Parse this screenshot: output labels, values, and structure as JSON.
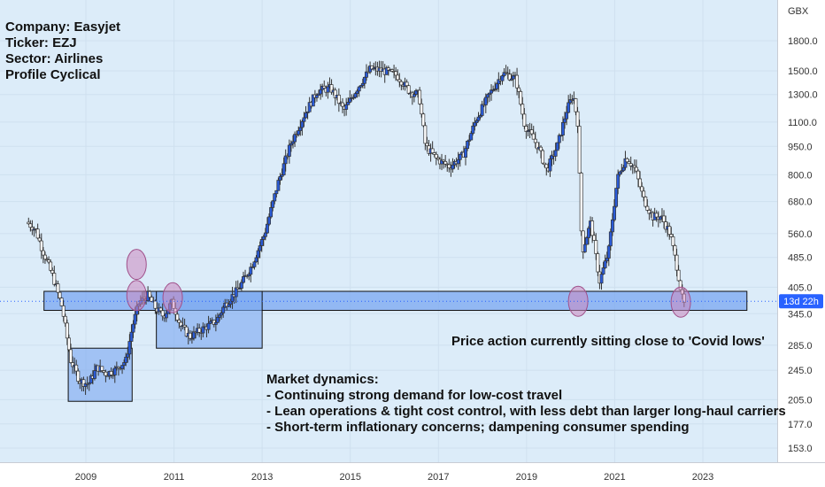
{
  "annotations": {
    "company": "Company: Easyjet",
    "ticker": "Ticker: EZJ",
    "sector": "Sector: Airlines",
    "profile": "Profile Cyclical",
    "covid_note": "Price action currently sitting close to 'Covid lows'",
    "dynamics_title": "Market dynamics:",
    "dynamics_points": [
      "- Continuing strong demand for low-cost travel",
      "- Lean operations & tight cost control, with less debt than larger long-haul carriers",
      "- Short-term inflationary concerns; dampening consumer spending"
    ]
  },
  "colors": {
    "background": "#dcecf9",
    "candle_up": "#2a5bd7",
    "candle_down": "#ffffff",
    "wick": "#333333",
    "zone_fill": "#7aa7f0",
    "ellipse_fill": "#cc88c0",
    "price_badge": "#2962ff"
  },
  "chart_data": {
    "type": "candlestick",
    "currency": "GBX",
    "scale": "log",
    "y_ticks": [
      1800,
      1500,
      1300,
      1100,
      950,
      800,
      680,
      560,
      485,
      405,
      345,
      285,
      245,
      205,
      177,
      153
    ],
    "y_tick_labels": [
      "1800.0",
      "1500.0",
      "1300.0",
      "1100.0",
      "950.0",
      "800.0",
      "680.0",
      "560.0",
      "485.0",
      "405.0",
      "345.0",
      "285.0",
      "245.0",
      "205.0",
      "177.0",
      "153.0"
    ],
    "x_ticks": [
      "2009",
      "2011",
      "2013",
      "2015",
      "2017",
      "2019",
      "2021",
      "2023"
    ],
    "x_range": [
      2007.7,
      2024.3
    ],
    "y_range": [
      140,
      2400
    ],
    "current_price": 372,
    "current_label": "13d 22h",
    "support_zone": {
      "from_date": 2008.05,
      "to_date": 2024.0,
      "low": 352,
      "high": 395
    },
    "accumulation_zones": [
      {
        "from_date": 2008.6,
        "to_date": 2010.05,
        "low": 203,
        "high": 280
      },
      {
        "from_date": 2010.6,
        "to_date": 2013.0,
        "low": 280,
        "high": 395
      }
    ],
    "highlight_points": [
      {
        "date": 2010.15,
        "price": 465
      },
      {
        "date": 2010.15,
        "price": 385
      },
      {
        "date": 2010.97,
        "price": 380
      },
      {
        "date": 2020.17,
        "price": 372
      },
      {
        "date": 2022.5,
        "price": 370
      }
    ],
    "price_path": [
      [
        2007.7,
        600
      ],
      [
        2007.9,
        575
      ],
      [
        2008.05,
        510
      ],
      [
        2008.3,
        430
      ],
      [
        2008.5,
        360
      ],
      [
        2008.7,
        260
      ],
      [
        2008.9,
        230
      ],
      [
        2009.1,
        225
      ],
      [
        2009.3,
        250
      ],
      [
        2009.5,
        240
      ],
      [
        2009.7,
        245
      ],
      [
        2009.95,
        260
      ],
      [
        2010.1,
        320
      ],
      [
        2010.25,
        370
      ],
      [
        2010.45,
        385
      ],
      [
        2010.6,
        360
      ],
      [
        2010.8,
        340
      ],
      [
        2011.0,
        370
      ],
      [
        2011.2,
        320
      ],
      [
        2011.4,
        300
      ],
      [
        2011.6,
        310
      ],
      [
        2011.8,
        320
      ],
      [
        2012.0,
        330
      ],
      [
        2012.2,
        365
      ],
      [
        2012.5,
        400
      ],
      [
        2012.8,
        460
      ],
      [
        2013.1,
        560
      ],
      [
        2013.4,
        760
      ],
      [
        2013.7,
        970
      ],
      [
        2014.0,
        1150
      ],
      [
        2014.3,
        1330
      ],
      [
        2014.6,
        1350
      ],
      [
        2014.9,
        1180
      ],
      [
        2015.2,
        1350
      ],
      [
        2015.5,
        1520
      ],
      [
        2015.8,
        1500
      ],
      [
        2016.1,
        1460
      ],
      [
        2016.4,
        1320
      ],
      [
        2016.6,
        1300
      ],
      [
        2016.75,
        950
      ],
      [
        2017.0,
        880
      ],
      [
        2017.3,
        840
      ],
      [
        2017.6,
        900
      ],
      [
        2017.9,
        1120
      ],
      [
        2018.2,
        1300
      ],
      [
        2018.5,
        1480
      ],
      [
        2018.8,
        1430
      ],
      [
        2019.0,
        1080
      ],
      [
        2019.3,
        950
      ],
      [
        2019.5,
        820
      ],
      [
        2019.75,
        960
      ],
      [
        2019.95,
        1180
      ],
      [
        2020.1,
        1300
      ],
      [
        2020.2,
        1100
      ],
      [
        2020.3,
        500
      ],
      [
        2020.5,
        600
      ],
      [
        2020.7,
        420
      ],
      [
        2020.9,
        500
      ],
      [
        2021.1,
        780
      ],
      [
        2021.3,
        890
      ],
      [
        2021.5,
        830
      ],
      [
        2021.7,
        690
      ],
      [
        2021.9,
        620
      ],
      [
        2022.1,
        620
      ],
      [
        2022.3,
        560
      ],
      [
        2022.45,
        460
      ],
      [
        2022.6,
        365
      ]
    ]
  }
}
